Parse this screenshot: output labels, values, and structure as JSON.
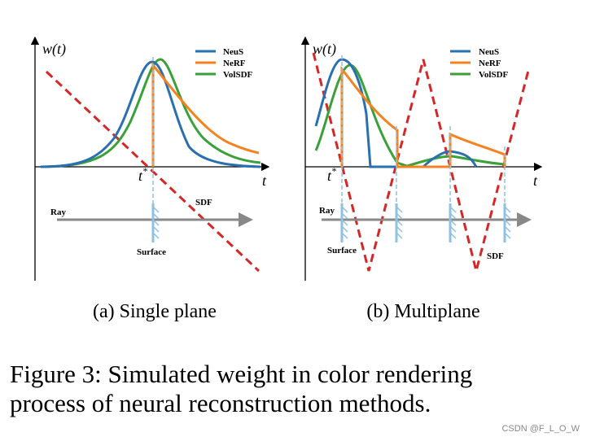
{
  "panels": [
    {
      "y_label": "w(t)",
      "x_label": "t",
      "t_star": {
        "base": "t",
        "sup": "*"
      },
      "legend": [
        "NeuS",
        "NeRF",
        "VolSDF"
      ],
      "ray": "Ray",
      "surface": "Surface",
      "sdf": "SDF",
      "caption": "(a) Single plane"
    },
    {
      "y_label": "w(t)",
      "x_label": "t",
      "t_star": {
        "base": "t",
        "sup": "*"
      },
      "legend": [
        "NeuS",
        "NeRF",
        "VolSDF"
      ],
      "ray": "Ray",
      "surface": "Surface",
      "sdf": "SDF",
      "caption": "(b) Multiplane"
    }
  ],
  "figure_caption": [
    "Figure 3: Simulated weight in color rendering",
    "process of neural reconstruction methods."
  ],
  "watermark": "CSDN @F_L_O_W"
}
